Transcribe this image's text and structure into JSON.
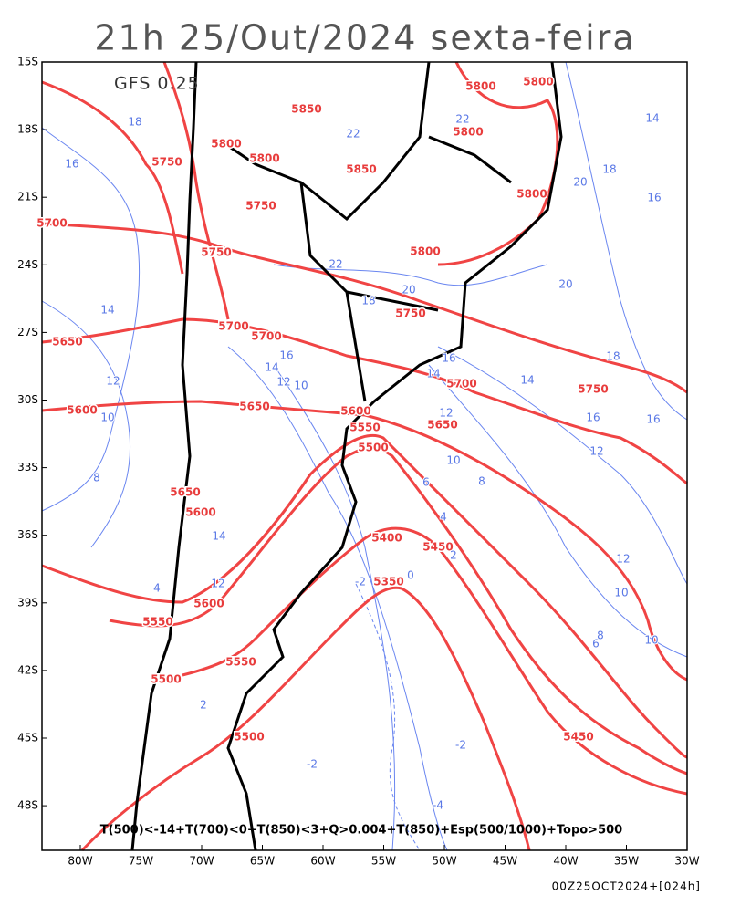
{
  "title": "21h 25/Out/2024 sexta-feira",
  "model_label": "GFS 0.25",
  "legend_text": "T(500)<-14+T(700)<0+T(850)<3+Q>0.004+T(850)+Esp(500/1000)+Topo>500",
  "run_label": "00Z25OCT2024+[024h]",
  "lat_ticks": [
    {
      "value": -15,
      "label": "15S"
    },
    {
      "value": -18,
      "label": "18S"
    },
    {
      "value": -21,
      "label": "21S"
    },
    {
      "value": -24,
      "label": "24S"
    },
    {
      "value": -27,
      "label": "27S"
    },
    {
      "value": -30,
      "label": "30S"
    },
    {
      "value": -33,
      "label": "33S"
    },
    {
      "value": -36,
      "label": "36S"
    },
    {
      "value": -39,
      "label": "39S"
    },
    {
      "value": -42,
      "label": "42S"
    },
    {
      "value": -45,
      "label": "45S"
    },
    {
      "value": -48,
      "label": "48S"
    }
  ],
  "lon_ticks": [
    {
      "value": -80,
      "label": "80W"
    },
    {
      "value": -75,
      "label": "75W"
    },
    {
      "value": -70,
      "label": "70W"
    },
    {
      "value": -65,
      "label": "65W"
    },
    {
      "value": -60,
      "label": "60W"
    },
    {
      "value": -55,
      "label": "55W"
    },
    {
      "value": -50,
      "label": "50W"
    },
    {
      "value": -45,
      "label": "45W"
    },
    {
      "value": -40,
      "label": "40W"
    },
    {
      "value": -35,
      "label": "35W"
    },
    {
      "value": -30,
      "label": "30W"
    }
  ],
  "height_labels": [
    5800,
    5800,
    5850,
    5800,
    5800,
    5750,
    5800,
    5850,
    5800,
    5750,
    5700,
    5800,
    5750,
    5750,
    5700,
    5700,
    5650,
    5700,
    5750,
    5650,
    5600,
    5600,
    5650,
    5550,
    5500,
    5650,
    5600,
    5400,
    5450,
    5350,
    5600,
    5550,
    5550,
    5500,
    5500,
    5450
  ],
  "temp_labels": [
    18,
    16,
    14,
    12,
    10,
    8,
    22,
    20,
    18,
    16,
    14,
    12,
    10,
    16,
    14,
    12,
    10,
    8,
    6,
    4,
    2,
    0,
    -2,
    -2,
    -2,
    -4,
    14,
    18,
    16,
    20,
    20,
    18,
    14,
    16,
    16,
    12,
    12,
    10,
    8,
    6,
    10,
    22,
    22,
    14,
    12,
    4,
    2
  ]
}
